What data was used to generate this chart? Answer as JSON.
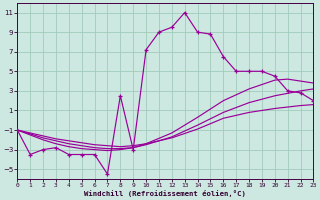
{
  "background_color": "#cde8e0",
  "grid_color": "#a0ccbc",
  "line_color": "#990099",
  "xlabel": "Windchill (Refroidissement éolien,°C)",
  "xlim": [
    0,
    23
  ],
  "ylim": [
    -6,
    12
  ],
  "xticks": [
    0,
    1,
    2,
    3,
    4,
    5,
    6,
    7,
    8,
    9,
    10,
    11,
    12,
    13,
    14,
    15,
    16,
    17,
    18,
    19,
    20,
    21,
    22,
    23
  ],
  "yticks": [
    -5,
    -3,
    -1,
    1,
    3,
    5,
    7,
    9,
    11
  ],
  "main_x": [
    0,
    1,
    2,
    3,
    4,
    5,
    6,
    7,
    8,
    9,
    10,
    11,
    12,
    13,
    14,
    15,
    16,
    17,
    18,
    19,
    20,
    21,
    22,
    23
  ],
  "main_y": [
    -1,
    -3.5,
    -3.0,
    -2.8,
    -3.5,
    -3.5,
    -3.5,
    -5.5,
    2.5,
    -3.0,
    7.2,
    9.0,
    9.5,
    11.0,
    9.0,
    8.8,
    6.5,
    5.0,
    5.0,
    5.0,
    4.5,
    3.0,
    2.8,
    2.0
  ],
  "smooth1_x": [
    0,
    1,
    2,
    3,
    4,
    5,
    6,
    7,
    8,
    9,
    10,
    12,
    14,
    16,
    18,
    20,
    22,
    23
  ],
  "smooth1_y": [
    -1,
    -1.3,
    -1.6,
    -1.9,
    -2.1,
    -2.3,
    -2.5,
    -2.6,
    -2.7,
    -2.6,
    -2.4,
    -1.8,
    -0.9,
    0.2,
    0.8,
    1.2,
    1.5,
    1.6
  ],
  "smooth2_x": [
    0,
    1,
    2,
    3,
    4,
    5,
    6,
    7,
    8,
    9,
    10,
    12,
    14,
    16,
    18,
    20,
    22,
    23
  ],
  "smooth2_y": [
    -1,
    -1.4,
    -1.8,
    -2.1,
    -2.4,
    -2.6,
    -2.8,
    -2.9,
    -2.9,
    -2.8,
    -2.5,
    -1.7,
    -0.5,
    0.8,
    1.8,
    2.5,
    3.0,
    3.2
  ],
  "smooth3_x": [
    0,
    1,
    2,
    3,
    4,
    5,
    6,
    7,
    8,
    9,
    10,
    12,
    14,
    16,
    18,
    20,
    21,
    22,
    23
  ],
  "smooth3_y": [
    -1,
    -1.5,
    -2.0,
    -2.4,
    -2.7,
    -2.9,
    -3.0,
    -3.1,
    -3.0,
    -2.8,
    -2.4,
    -1.3,
    0.3,
    2.0,
    3.2,
    4.1,
    4.2,
    4.0,
    3.8
  ]
}
